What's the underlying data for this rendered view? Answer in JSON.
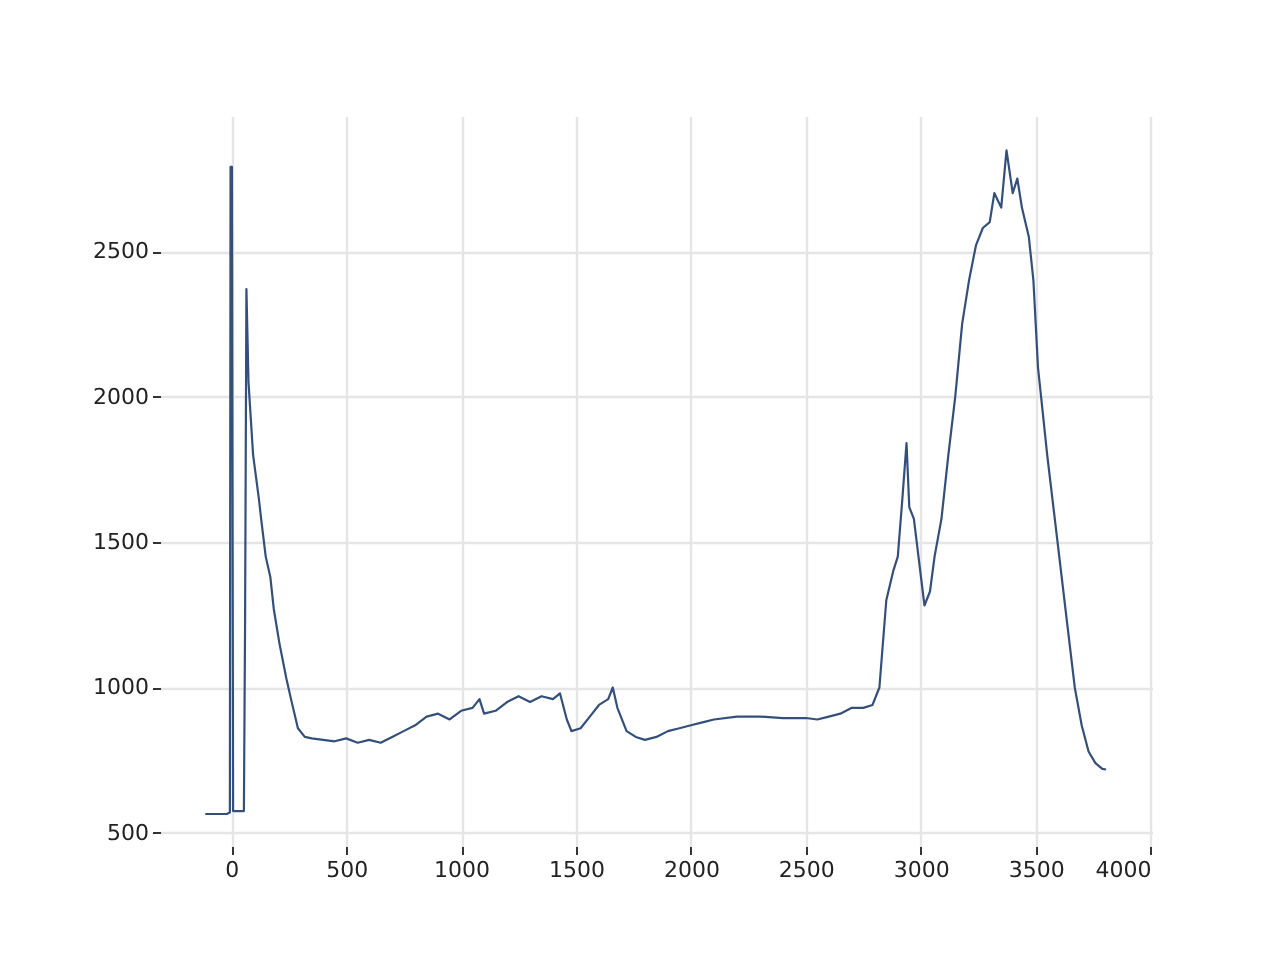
{
  "chart_data": {
    "type": "line",
    "grid": true,
    "line_style": "solid",
    "marker": "none",
    "xlim": [
      -310,
      4006
    ],
    "ylim": [
      455,
      2965
    ],
    "xticks": [
      0,
      500,
      1000,
      1500,
      2000,
      2500,
      3000,
      3500,
      4000
    ],
    "yticks": [
      500,
      1000,
      1500,
      2000,
      2500
    ],
    "series": [
      {
        "color": "#34507a",
        "x": [
          -113,
          -20,
          -6,
          -3,
          3,
          8,
          55,
          60,
          66,
          75,
          95,
          120,
          130,
          150,
          170,
          185,
          210,
          240,
          260,
          290,
          320,
          350,
          400,
          450,
          500,
          550,
          600,
          650,
          700,
          750,
          800,
          850,
          900,
          950,
          1000,
          1050,
          1080,
          1100,
          1150,
          1200,
          1250,
          1300,
          1350,
          1400,
          1430,
          1460,
          1480,
          1520,
          1560,
          1600,
          1640,
          1660,
          1680,
          1720,
          1760,
          1800,
          1850,
          1900,
          1950,
          2000,
          2050,
          2100,
          2200,
          2300,
          2400,
          2500,
          2550,
          2600,
          2650,
          2700,
          2750,
          2790,
          2820,
          2850,
          2880,
          2900,
          2920,
          2938,
          2950,
          2970,
          2990,
          3016,
          3040,
          3060,
          3090,
          3120,
          3150,
          3180,
          3210,
          3240,
          3270,
          3300,
          3320,
          3350,
          3373,
          3400,
          3420,
          3440,
          3470,
          3490,
          3510,
          3530,
          3550,
          3580,
          3610,
          3640,
          3670,
          3700,
          3730,
          3760,
          3790,
          3806
        ],
        "values": [
          565,
          565,
          570,
          2790,
          2790,
          575,
          575,
          1200,
          2370,
          2050,
          1800,
          1650,
          1580,
          1450,
          1380,
          1270,
          1150,
          1030,
          960,
          860,
          830,
          825,
          820,
          815,
          825,
          810,
          820,
          810,
          830,
          850,
          870,
          900,
          910,
          890,
          920,
          930,
          960,
          910,
          920,
          950,
          970,
          950,
          970,
          960,
          980,
          890,
          850,
          860,
          900,
          940,
          960,
          1000,
          930,
          850,
          830,
          820,
          830,
          850,
          860,
          870,
          880,
          890,
          900,
          900,
          895,
          895,
          890,
          900,
          910,
          930,
          930,
          940,
          1000,
          1300,
          1400,
          1450,
          1650,
          1840,
          1620,
          1580,
          1450,
          1282,
          1330,
          1450,
          1580,
          1800,
          2000,
          2250,
          2400,
          2520,
          2580,
          2600,
          2700,
          2650,
          2847,
          2700,
          2750,
          2650,
          2550,
          2400,
          2100,
          1950,
          1800,
          1600,
          1400,
          1200,
          1000,
          870,
          780,
          740,
          720,
          718
        ]
      }
    ]
  }
}
